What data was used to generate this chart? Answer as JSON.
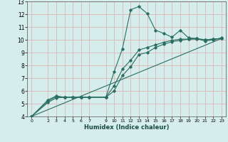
{
  "xlabel": "Humidex (Indice chaleur)",
  "ylabel": "",
  "bg_color": "#d5eeeb",
  "grid_color": "#deb8b8",
  "line_color": "#2a6e62",
  "xlim": [
    -0.5,
    23.5
  ],
  "ylim": [
    4,
    13
  ],
  "xticks": [
    0,
    2,
    3,
    4,
    5,
    6,
    7,
    9,
    10,
    11,
    12,
    13,
    14,
    15,
    16,
    17,
    18,
    19,
    20,
    21,
    22,
    23
  ],
  "yticks": [
    4,
    5,
    6,
    7,
    8,
    9,
    10,
    11,
    12,
    13
  ],
  "line1_x": [
    0,
    2,
    3,
    4,
    5,
    6,
    7,
    9,
    10,
    11,
    12,
    13,
    14,
    15,
    16,
    17,
    18,
    19,
    20,
    21,
    22,
    23
  ],
  "line1_y": [
    4.0,
    5.3,
    5.6,
    5.5,
    5.5,
    5.5,
    5.5,
    5.5,
    7.5,
    9.3,
    12.35,
    12.6,
    12.05,
    10.75,
    10.5,
    10.2,
    10.75,
    10.15,
    10.1,
    9.9,
    10.0,
    10.15
  ],
  "line2_x": [
    0,
    2,
    3,
    4,
    5,
    6,
    7,
    9,
    10,
    11,
    12,
    13,
    14,
    15,
    16,
    17,
    18,
    19,
    20,
    21,
    22,
    23
  ],
  "line2_y": [
    4.0,
    5.2,
    5.55,
    5.5,
    5.5,
    5.5,
    5.5,
    5.5,
    6.0,
    7.2,
    7.9,
    8.85,
    9.0,
    9.4,
    9.65,
    9.85,
    9.95,
    10.05,
    10.05,
    10.0,
    10.05,
    10.1
  ],
  "line3_x": [
    0,
    23
  ],
  "line3_y": [
    4.0,
    10.1
  ],
  "line4_x": [
    0,
    2,
    3,
    4,
    5,
    6,
    7,
    9,
    10,
    11,
    12,
    13,
    14,
    15,
    16,
    17,
    18,
    19,
    20,
    21,
    22,
    23
  ],
  "line4_y": [
    4.0,
    5.1,
    5.45,
    5.5,
    5.5,
    5.5,
    5.5,
    5.5,
    6.4,
    7.7,
    8.4,
    9.2,
    9.4,
    9.6,
    9.8,
    9.95,
    10.05,
    10.05,
    10.1,
    10.0,
    10.05,
    10.1
  ]
}
